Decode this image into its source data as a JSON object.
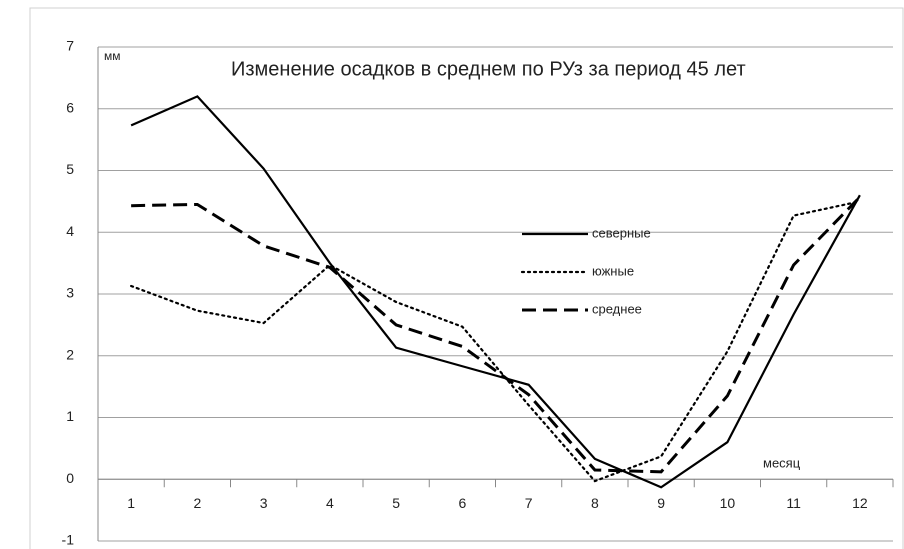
{
  "chart_data": {
    "type": "line",
    "title": "Изменение осадков в среднем по РУз за период 45 лет",
    "y_label": "мм",
    "x_label": "месяц",
    "categories": [
      1,
      2,
      3,
      4,
      5,
      6,
      7,
      8,
      9,
      10,
      11,
      12
    ],
    "series": [
      {
        "name": "северные",
        "color": "#000000",
        "style": "solid",
        "values": [
          5.73,
          6.2,
          5.03,
          3.5,
          2.13,
          1.83,
          1.53,
          0.33,
          -0.13,
          0.6,
          2.67,
          4.6
        ]
      },
      {
        "name": "южные",
        "color": "#000000",
        "style": "dotted",
        "values": [
          3.13,
          2.73,
          2.53,
          3.47,
          2.87,
          2.47,
          1.2,
          -0.03,
          0.37,
          2.07,
          4.27,
          4.5
        ]
      },
      {
        "name": "среднее",
        "color": "#000000",
        "style": "dashed",
        "values": [
          4.43,
          4.45,
          3.78,
          3.43,
          2.5,
          2.15,
          1.37,
          0.15,
          0.12,
          1.35,
          3.47,
          4.57
        ]
      }
    ],
    "ylim": [
      -1,
      7
    ],
    "yticks": [
      -1,
      0,
      1,
      2,
      3,
      4,
      5,
      6,
      7
    ],
    "grid": true,
    "legend": "right"
  }
}
